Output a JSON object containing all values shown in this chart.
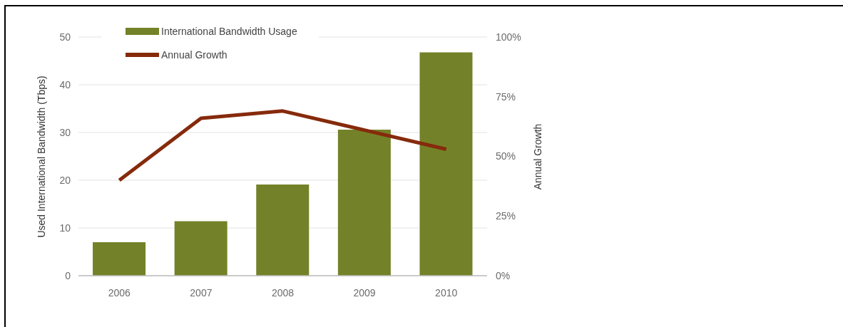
{
  "chart_data": {
    "type": "bar",
    "categories": [
      "2006",
      "2007",
      "2008",
      "2009",
      "2010"
    ],
    "series": [
      {
        "name": "International Bandwidth Usage",
        "color": "#738228",
        "values": [
          7.0,
          11.4,
          19.1,
          30.6,
          46.8
        ]
      },
      {
        "name": "Annual Growth",
        "type": "line",
        "axis": "y2",
        "color": "#862a0c",
        "values": [
          40,
          66,
          69,
          61,
          53
        ]
      }
    ],
    "ylabel": "Used International Bandwidth (Tbps)",
    "y2label": "Annual Growth",
    "ylim": [
      0,
      50
    ],
    "yticks": [
      0,
      10,
      20,
      30,
      40,
      50
    ],
    "y2lim": [
      0,
      100
    ],
    "y2ticks": [
      {
        "value": 0,
        "label": "0%"
      },
      {
        "value": 25,
        "label": "25%"
      },
      {
        "value": 50,
        "label": "50%"
      },
      {
        "value": 75,
        "label": "75%"
      },
      {
        "value": 100,
        "label": "100%"
      }
    ],
    "grid": "y",
    "legend": "top left"
  }
}
